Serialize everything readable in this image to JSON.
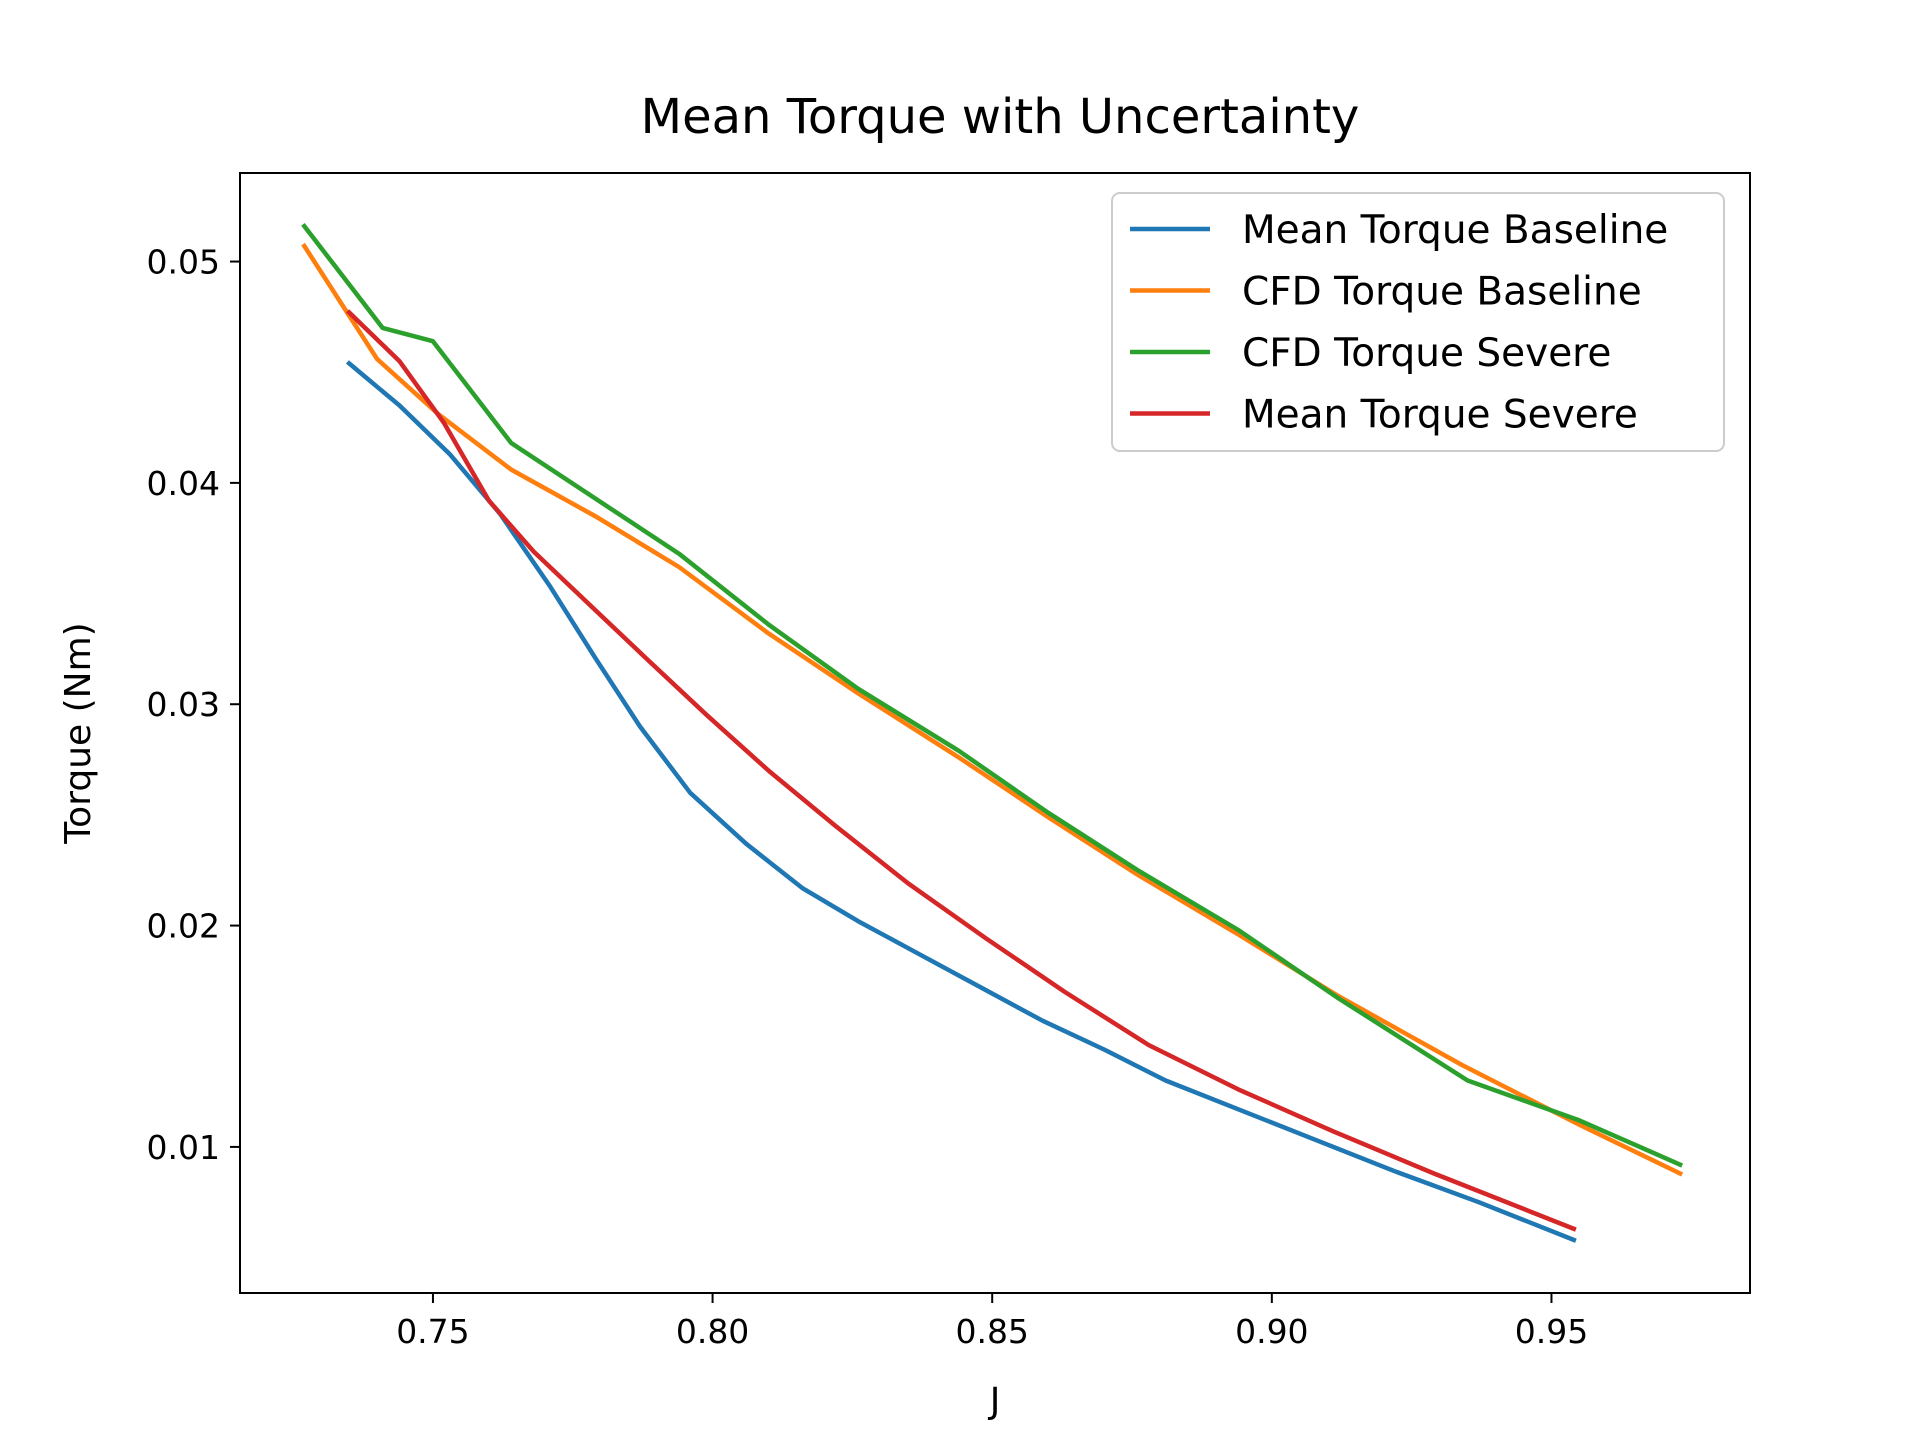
{
  "chart_data": {
    "type": "line",
    "title": "Mean Torque with Uncertainty",
    "xlabel": "J",
    "ylabel": "Torque (Nm)",
    "xlim": [
      0.7155,
      0.9855
    ],
    "ylim": [
      0.0034,
      0.054
    ],
    "xticks": [
      0.75,
      0.8,
      0.85,
      0.9,
      0.95
    ],
    "xtick_labels": [
      "0.75",
      "0.80",
      "0.85",
      "0.90",
      "0.95"
    ],
    "yticks": [
      0.01,
      0.02,
      0.03,
      0.04,
      0.05
    ],
    "ytick_labels": [
      "0.01",
      "0.02",
      "0.03",
      "0.04",
      "0.05"
    ],
    "grid": false,
    "legend_position": "top-right",
    "series": [
      {
        "name": "Mean Torque Baseline",
        "color": "#1f77b4",
        "x": [
          0.735,
          0.744,
          0.753,
          0.762,
          0.771,
          0.779,
          0.787,
          0.796,
          0.806,
          0.816,
          0.826,
          0.837,
          0.848,
          0.859,
          0.87,
          0.881,
          0.894,
          0.908,
          0.922,
          0.937,
          0.954
        ],
        "y": [
          0.0454,
          0.0435,
          0.0413,
          0.0386,
          0.0353,
          0.0321,
          0.029,
          0.026,
          0.0237,
          0.0217,
          0.0202,
          0.0187,
          0.0172,
          0.0157,
          0.0144,
          0.013,
          0.0117,
          0.0103,
          0.0089,
          0.0075,
          0.0058
        ]
      },
      {
        "name": "CFD Torque Baseline",
        "color": "#ff7f0e",
        "x": [
          0.727,
          0.74,
          0.751,
          0.764,
          0.779,
          0.794,
          0.81,
          0.826,
          0.844,
          0.86,
          0.876,
          0.894,
          0.912,
          0.934,
          0.955,
          0.973
        ],
        "y": [
          0.0507,
          0.0456,
          0.0431,
          0.0406,
          0.0385,
          0.0362,
          0.0332,
          0.0305,
          0.0276,
          0.0249,
          0.0223,
          0.0196,
          0.0168,
          0.0137,
          0.011,
          0.0088
        ]
      },
      {
        "name": "CFD Torque Severe",
        "color": "#2ca02c",
        "x": [
          0.727,
          0.741,
          0.75,
          0.764,
          0.779,
          0.794,
          0.81,
          0.826,
          0.844,
          0.86,
          0.876,
          0.894,
          0.912,
          0.935,
          0.955,
          0.973
        ],
        "y": [
          0.0516,
          0.047,
          0.0464,
          0.0418,
          0.0393,
          0.0368,
          0.0336,
          0.0307,
          0.0279,
          0.0251,
          0.0225,
          0.0198,
          0.0167,
          0.013,
          0.0112,
          0.0092
        ]
      },
      {
        "name": "Mean Torque Severe",
        "color": "#d62728",
        "x": [
          0.735,
          0.744,
          0.752,
          0.76,
          0.768,
          0.778,
          0.788,
          0.799,
          0.81,
          0.822,
          0.835,
          0.849,
          0.863,
          0.878,
          0.894,
          0.911,
          0.929,
          0.946,
          0.954
        ],
        "y": [
          0.0477,
          0.0455,
          0.0427,
          0.0392,
          0.0369,
          0.0345,
          0.0321,
          0.0295,
          0.027,
          0.0245,
          0.0219,
          0.0194,
          0.017,
          0.0146,
          0.0126,
          0.0107,
          0.0088,
          0.0071,
          0.0063
        ]
      }
    ]
  }
}
